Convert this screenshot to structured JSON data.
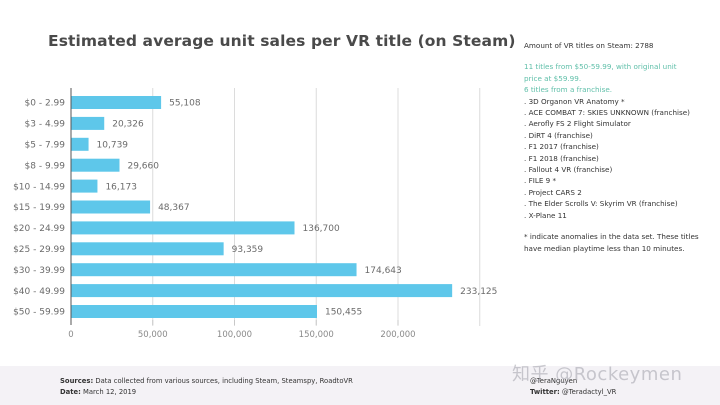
{
  "chart_data": {
    "type": "bar",
    "orientation": "horizontal",
    "title": "Estimated average unit sales per VR title (on Steam)",
    "xlabel": "",
    "ylabel": "",
    "categories": [
      "$0 - 2.99",
      "$3 - 4.99",
      "$5 - 7.99",
      "$8 - 9.99",
      "$10 - 14.99",
      "$15 - 19.99",
      "$20 - 24.99",
      "$25 - 29.99",
      "$30 - 39.99",
      "$40 - 49.99",
      "$50 - 59.99"
    ],
    "values": [
      55108,
      20326,
      10739,
      29660,
      16173,
      48367,
      136700,
      93359,
      174643,
      233125,
      150455
    ],
    "value_labels": [
      "55,108",
      "20,326",
      "10,739",
      "29,660",
      "16,173",
      "48,367",
      "136,700",
      "93,359",
      "174,643",
      "233,125",
      "150,455"
    ],
    "xlim": [
      0,
      250000
    ],
    "xticks": [
      0,
      50000,
      100000,
      150000,
      200000
    ],
    "xtick_labels": [
      "0",
      "50,000",
      "100,000",
      "150,000",
      "200,000"
    ],
    "grid": true,
    "bar_color": "#5ec7ea"
  },
  "side_panel": {
    "count": "Amount of VR titles on Steam: 2788",
    "highlight_lines": [
      "11 titles from $50-59.99, with original unit",
      "price at $59.99.",
      "6 titles from a franchise."
    ],
    "titles": [
      ". 3D Organon VR Anatomy *",
      ". ACE COMBAT 7: SKIES UNKNOWN (franchise)",
      ". Aerofly FS 2 Flight Simulator",
      ". DiRT 4 (franchise)",
      ". F1 2017 (franchise)",
      ". F1 2018 (franchise)",
      ". Fallout 4 VR (franchise)",
      ". FILE 9 *",
      ". Project CARS 2",
      ". The Elder Scrolls V: Skyrim VR (franchise)",
      ". X-Plane 11"
    ],
    "footnote_lines": [
      "* indicate anomalies in the data set. These titles",
      "have median playtime less than 10 minutes."
    ],
    "accent_color": "#5fbfa9"
  },
  "footer": {
    "sources_label": "Sources:",
    "sources_text": " Data collected from various sources, including Steam, Steamspy, RoadtoVR",
    "date_label": "Date:",
    "date_text": " March 12, 2019",
    "author_handle": "@TeraNguyen",
    "twitter_label": "Twitter:",
    "twitter_text": " @Teradactyl_VR"
  },
  "watermark": "知乎 @Rockeymen"
}
